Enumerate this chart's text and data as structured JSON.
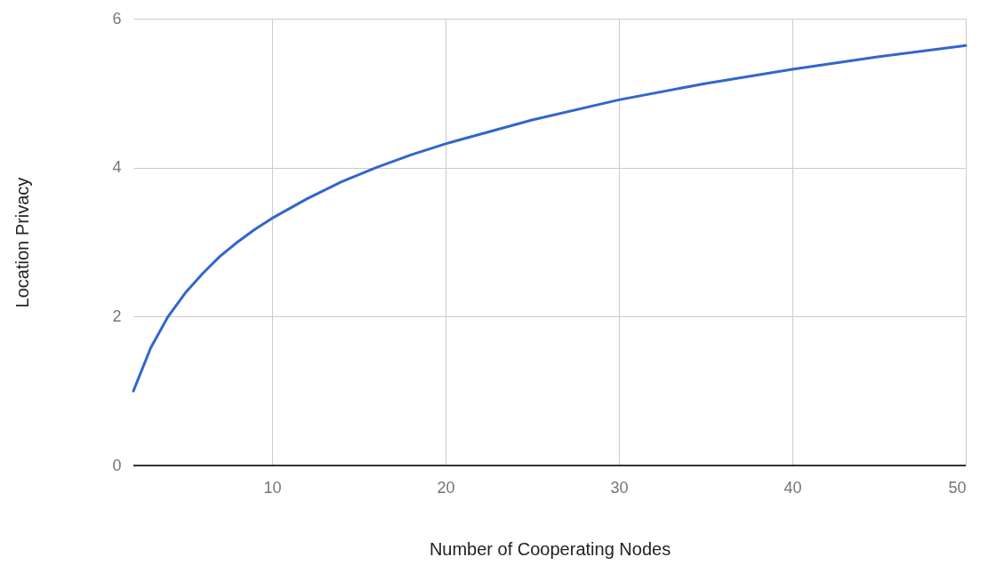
{
  "chart_data": {
    "type": "line",
    "xlabel": "Number of Cooperating Nodes",
    "ylabel": "Location Privacy",
    "x": [
      2,
      3,
      4,
      5,
      6,
      7,
      8,
      9,
      10,
      12,
      14,
      16,
      18,
      20,
      25,
      30,
      35,
      40,
      45,
      50
    ],
    "series": [
      {
        "color": "#3366cc",
        "values": [
          1,
          1.58,
          2,
          2.32,
          2.58,
          2.81,
          3,
          3.17,
          3.32,
          3.58,
          3.81,
          4,
          4.17,
          4.32,
          4.64,
          4.91,
          5.13,
          5.32,
          5.49,
          5.64
        ]
      }
    ],
    "xlim": [
      2,
      50
    ],
    "xticks": [
      10,
      20,
      30,
      40,
      50
    ],
    "ylim": [
      0,
      6
    ],
    "yticks": [
      0,
      2,
      4,
      6
    ],
    "grid": true,
    "legend": false,
    "marker": "none",
    "line_style": "solid"
  }
}
